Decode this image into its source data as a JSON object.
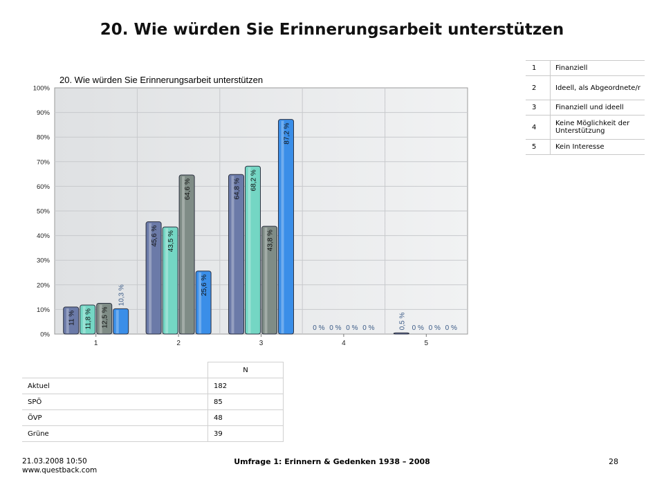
{
  "page": {
    "title": "20. Wie würden Sie Erinnerungsarbeit unterstützen"
  },
  "chart_data": {
    "type": "bar",
    "title": "20. Wie würden Sie Erinnerungsarbeit unterstützen",
    "categories": [
      "1",
      "2",
      "3",
      "4",
      "5"
    ],
    "ylim": [
      0,
      100
    ],
    "yticks": [
      "0%",
      "10%",
      "20%",
      "30%",
      "40%",
      "50%",
      "60%",
      "70%",
      "80%",
      "90%",
      "100%"
    ],
    "grid": true,
    "legend": "right",
    "series": [
      {
        "name": "Aktuel",
        "color": "#6b7aa8",
        "values": [
          11,
          45.6,
          64.8,
          0,
          0.5
        ],
        "labels": [
          "11 %",
          "45,6 %",
          "64,8 %",
          "0 %",
          "0,5 %"
        ]
      },
      {
        "name": "SPÖ",
        "color": "#74d6c4",
        "values": [
          11.8,
          43.5,
          68.2,
          0,
          0
        ],
        "labels": [
          "11,8 %",
          "43,5 %",
          "68,2 %",
          "0 %",
          "0 %"
        ]
      },
      {
        "name": "ÖVP",
        "color": "#7f8c86",
        "values": [
          12.5,
          64.6,
          43.8,
          0,
          0
        ],
        "labels": [
          "12,5 %",
          "64,6 %",
          "43,8 %",
          "0 %",
          "0 %"
        ]
      },
      {
        "name": "Grüne",
        "color": "#3a8ee8",
        "values": [
          10.3,
          25.6,
          87.2,
          0,
          0
        ],
        "labels": [
          "10,3 %",
          "25,6 %",
          "87,2 %",
          "0 %",
          "0 %"
        ]
      }
    ]
  },
  "answer_legend": [
    {
      "num": "1",
      "text": "Finanziell"
    },
    {
      "num": "2",
      "text": "Ideell, als Abgeordnete/r"
    },
    {
      "num": "3",
      "text": "Finanziell und ideell"
    },
    {
      "num": "4",
      "text": "Keine Möglichkeit der Unterstützung"
    },
    {
      "num": "5",
      "text": "Kein Interesse"
    }
  ],
  "n_table": {
    "header": "N",
    "rows": [
      {
        "label": "Aktuel",
        "value": "182"
      },
      {
        "label": "SPÖ",
        "value": "85"
      },
      {
        "label": "ÖVP",
        "value": "48"
      },
      {
        "label": "Grüne",
        "value": "39"
      }
    ]
  },
  "footer": {
    "datetime": "21.03.2008 10:50",
    "website": "www.questback.com",
    "center": "Umfrage 1: Erinnern & Gedenken 1938 – 2008",
    "page_number": "28"
  }
}
